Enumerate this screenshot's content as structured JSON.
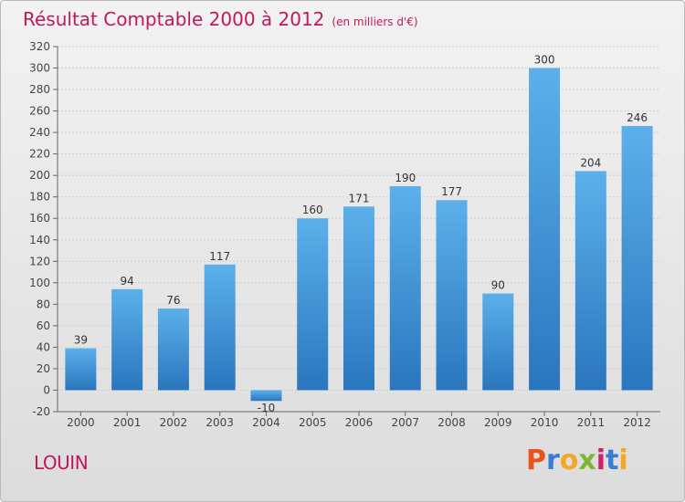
{
  "header": {
    "title": "Résultat Comptable 2000 à 2012",
    "subtitle": "(en milliers d'€)"
  },
  "footer": {
    "town": "LOUIN",
    "brand": "Proxiti",
    "brand_letters": [
      "P",
      "r",
      "o",
      "x",
      "i",
      "t",
      "i"
    ],
    "brand_colors": [
      "#e8541a",
      "#3a7bd5",
      "#f5a623",
      "#7cb82f",
      "#d0206b",
      "#3a7bd5",
      "#f5a623"
    ]
  },
  "colors": {
    "title": "#c0185f",
    "bar_light": "#5aaee8",
    "bar_dark": "#2b78c0"
  },
  "chart_data": {
    "type": "bar",
    "categories": [
      "2000",
      "2001",
      "2002",
      "2003",
      "2004",
      "2005",
      "2006",
      "2007",
      "2008",
      "2009",
      "2010",
      "2011",
      "2012"
    ],
    "values": [
      39,
      94,
      76,
      117,
      -10,
      160,
      171,
      190,
      177,
      90,
      300,
      204,
      246
    ],
    "value_labels": [
      "39",
      "94",
      "76",
      "117",
      "-10",
      "160",
      "171",
      "190",
      "177",
      "90",
      "300",
      "204",
      "246"
    ],
    "title": "Résultat Comptable 2000 à 2012",
    "xlabel": "",
    "ylabel": "",
    "ylim": [
      -20,
      320
    ],
    "yticks": [
      -20,
      0,
      20,
      40,
      60,
      80,
      100,
      120,
      140,
      160,
      180,
      200,
      220,
      240,
      260,
      280,
      300,
      320
    ],
    "grid": true
  }
}
